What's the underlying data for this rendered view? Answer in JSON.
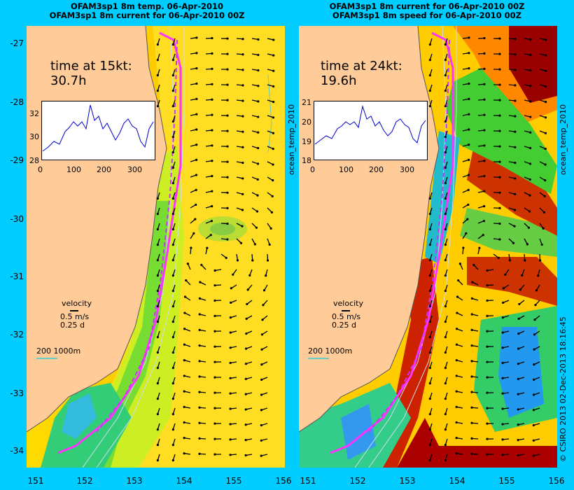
{
  "left_panel": {
    "title_line1": "OFAM3sp1 8m temp. 06-Apr-2010",
    "title_line2": "OFAM3sp1 8m current for 06-Apr-2010 00Z",
    "time_label": "time at 15kt:",
    "time_value": "30.7h",
    "side_label": "ocean_temp_2010",
    "inset": {
      "y_ticks": [
        "32",
        "30",
        "28"
      ],
      "x_ticks": [
        "0",
        "100",
        "200",
        "300"
      ]
    },
    "velocity_label": "velocity",
    "velocity_scale_1": "0.5 m/s",
    "velocity_scale_2": "0.25 d",
    "contour_label": "200  1000m"
  },
  "right_panel": {
    "title_line1": "OFAM3sp1 8m current for 06-Apr-2010 00Z",
    "title_line2": "OFAM3sp1 8m speed for 06-Apr-2010 00Z",
    "time_label": "time at 24kt:",
    "time_value": "19.6h",
    "side_label": "ocean_temp_2010",
    "inset": {
      "y_ticks": [
        "21",
        "20",
        "19",
        "18"
      ],
      "x_ticks": [
        "0",
        "100",
        "200",
        "300"
      ]
    },
    "velocity_label": "velocity",
    "velocity_scale_1": "0.5 m/s",
    "velocity_scale_2": "0.25 d",
    "contour_label": "200  1000m"
  },
  "y_axis_ticks": [
    "-27",
    "-28",
    "-29",
    "-30",
    "-31",
    "-32",
    "-33",
    "-34"
  ],
  "x_axis_ticks": [
    "151",
    "152",
    "153",
    "154",
    "155",
    "156"
  ],
  "credit": "© CSIRO 2013  02-Dec-2013 18:16:45",
  "colors": {
    "background": "#00ccff",
    "land": "#ffcc99",
    "route": "#ff33ff",
    "warm": "#ffcc00",
    "cool": "#00cc99"
  }
}
